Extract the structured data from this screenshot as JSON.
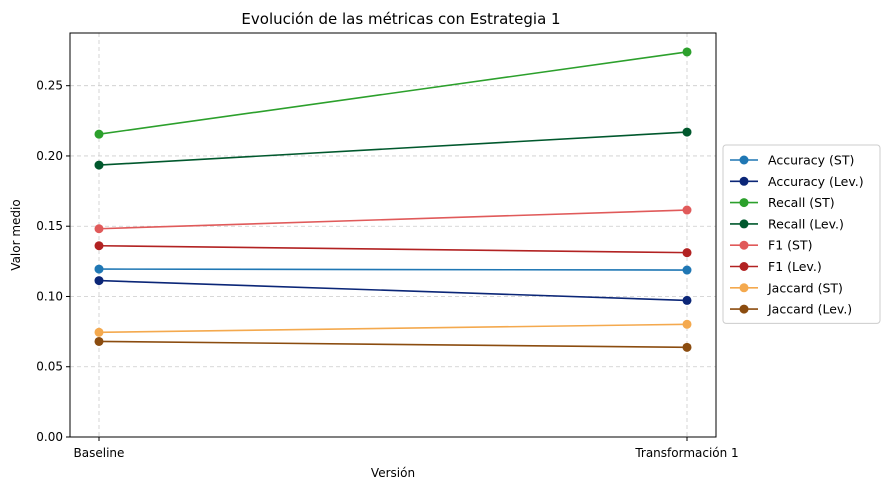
{
  "chart_data": {
    "type": "line",
    "title": "Evolución de las métricas con Estrategia 1",
    "xlabel": "Versión",
    "ylabel": "Valor medio",
    "categories": [
      "Baseline",
      "Transformación 1"
    ],
    "ylim": [
      0,
      0.2875
    ],
    "yticks": [
      0.0,
      0.05,
      0.1,
      0.15,
      0.2,
      0.25
    ],
    "ytick_labels": [
      "0.00",
      "0.05",
      "0.10",
      "0.15",
      "0.20",
      "0.25"
    ],
    "grid": true,
    "legend_position": "center-right-outside",
    "series": [
      {
        "name": "Accuracy (ST)",
        "color": "#1f77b4",
        "values": [
          0.1195,
          0.1188
        ]
      },
      {
        "name": "Accuracy (Lev.)",
        "color": "#0b2677",
        "values": [
          0.1113,
          0.0972
        ]
      },
      {
        "name": "Recall (ST)",
        "color": "#2ca02c",
        "values": [
          0.2155,
          0.274
        ]
      },
      {
        "name": "Recall (Lev.)",
        "color": "#00582d",
        "values": [
          0.1935,
          0.217
        ]
      },
      {
        "name": "F1 (ST)",
        "color": "#e05a5a",
        "values": [
          0.1482,
          0.1615
        ]
      },
      {
        "name": "F1 (Lev.)",
        "color": "#b22222",
        "values": [
          0.1361,
          0.1312
        ]
      },
      {
        "name": "Jaccard (ST)",
        "color": "#f4a94e",
        "values": [
          0.0745,
          0.0802
        ]
      },
      {
        "name": "Jaccard (Lev.)",
        "color": "#8b4c0f",
        "values": [
          0.068,
          0.0638
        ]
      }
    ]
  }
}
